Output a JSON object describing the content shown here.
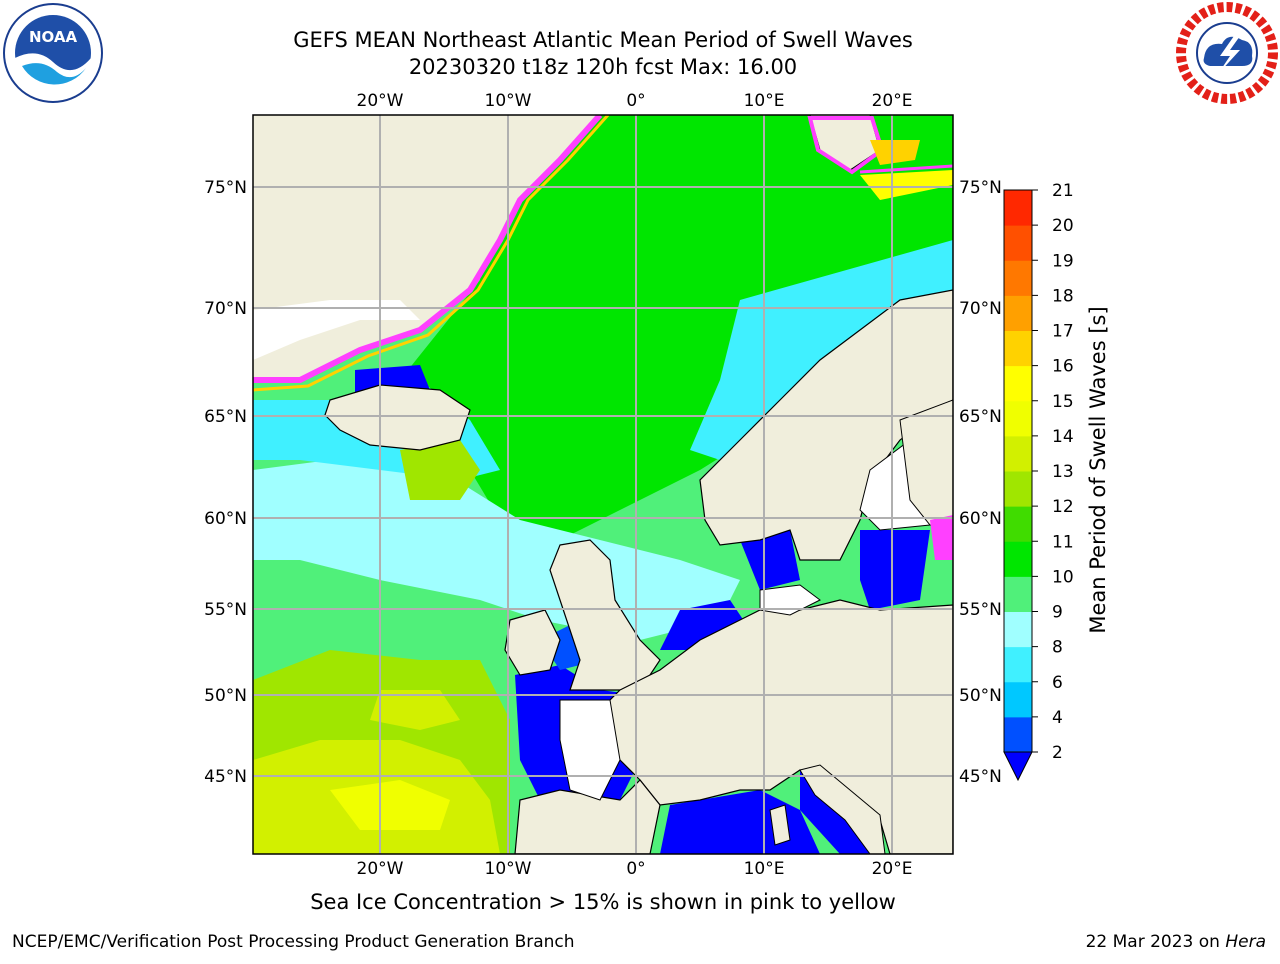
{
  "title_line1": "GEFS MEAN Northeast Atlantic Mean Period of Swell Waves",
  "title_line2": "20230320 t18z 120h fcst   Max: 16.00",
  "lon_ticks": [
    "20°W",
    "10°W",
    "0°",
    "10°E",
    "20°E"
  ],
  "lat_ticks": [
    "75°N",
    "70°N",
    "65°N",
    "60°N",
    "55°N",
    "50°N",
    "45°N"
  ],
  "colorbar": {
    "title": "Mean Period of Swell Waves [s]",
    "levels": [
      "2",
      "4",
      "6",
      "8",
      "9",
      "10",
      "11",
      "12",
      "13",
      "14",
      "15",
      "16",
      "17",
      "18",
      "19",
      "20",
      "21"
    ],
    "colors": [
      "#0050ff",
      "#00c8ff",
      "#40f0ff",
      "#a0ffff",
      "#50f07a",
      "#00e600",
      "#40dc00",
      "#a0e600",
      "#d2f000",
      "#f0ff00",
      "#ffff00",
      "#ffd200",
      "#ffa000",
      "#ff7800",
      "#ff5000",
      "#ff2800"
    ],
    "extend_color": "#0000ff"
  },
  "colors": {
    "land": "#f0eedc",
    "ice_pink": "#ff40ff",
    "ice_yellow": "#ffff00",
    "calm_blue": "#0000ff"
  },
  "ice_note": "Sea Ice Concentration > 15% is shown in pink to yellow",
  "footer_left": "NCEP/EMC/Verification Post Processing Product Generation Branch",
  "footer_date": "22 Mar 2023 on ",
  "footer_machine": "Hera",
  "logos": {
    "left": "noaa-logo",
    "right": "nws-logo"
  }
}
